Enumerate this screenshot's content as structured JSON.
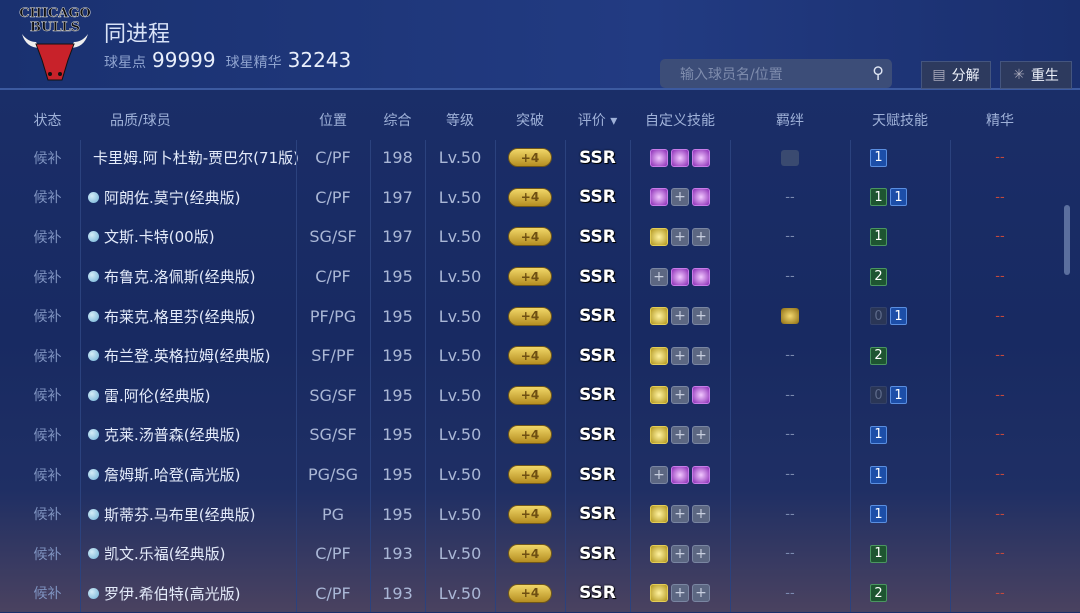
{
  "header": {
    "logo_text": "CHICAGO BULLS",
    "title": "同进程",
    "points_label": "球星点",
    "points": "99999",
    "essence_label": "球星精华",
    "essence": "32243",
    "search_placeholder": "输入球员名/位置",
    "decompose": "分解",
    "rebirth": "重生"
  },
  "columns": [
    "状态",
    "品质/球员",
    "位置",
    "综合",
    "等级",
    "突破",
    "评价 ▾",
    "自定义技能",
    "羁绊",
    "天赋技能",
    "精华"
  ],
  "colors": {
    "purple_skill": "#8a2bb5",
    "gold_skill": "#b0951c",
    "talent_blue": "#1c4ea8",
    "talent_green": "#1e5531",
    "essence_dash": "#c3493d"
  },
  "rows": [
    {
      "status": "候补",
      "name": "卡里姆.阿卜杜勒-贾巴尔(71版)",
      "pos": "C/PF",
      "ovr": "198",
      "lv": "Lv.50",
      "brk": "+4",
      "grade": "SSR",
      "skills": [
        "p",
        "p",
        "p"
      ],
      "bond": "icon-grey",
      "talents": [
        [
          "b",
          "1"
        ]
      ],
      "ess": "--"
    },
    {
      "status": "候补",
      "name": "阿朗佐.莫宁(经典版)",
      "pos": "C/PF",
      "ovr": "197",
      "lv": "Lv.50",
      "brk": "+4",
      "grade": "SSR",
      "skills": [
        "p",
        "e",
        "p"
      ],
      "bond": "--",
      "talents": [
        [
          "g",
          "1"
        ],
        [
          "b",
          "1"
        ]
      ],
      "ess": "--"
    },
    {
      "status": "候补",
      "name": "文斯.卡特(00版)",
      "pos": "SG/SF",
      "ovr": "197",
      "lv": "Lv.50",
      "brk": "+4",
      "grade": "SSR",
      "skills": [
        "y",
        "e",
        "e"
      ],
      "bond": "--",
      "talents": [
        [
          "g",
          "1"
        ]
      ],
      "ess": "--"
    },
    {
      "status": "候补",
      "name": "布鲁克.洛佩斯(经典版)",
      "pos": "C/PF",
      "ovr": "195",
      "lv": "Lv.50",
      "brk": "+4",
      "grade": "SSR",
      "skills": [
        "e",
        "p",
        "p"
      ],
      "bond": "--",
      "talents": [
        [
          "g",
          "2"
        ]
      ],
      "ess": "--"
    },
    {
      "status": "候补",
      "name": "布莱克.格里芬(经典版)",
      "pos": "PF/PG",
      "ovr": "195",
      "lv": "Lv.50",
      "brk": "+4",
      "grade": "SSR",
      "skills": [
        "y",
        "e",
        "e"
      ],
      "bond": "icon-gold",
      "talents": [
        [
          "z",
          "0"
        ],
        [
          "b",
          "1"
        ]
      ],
      "ess": "--"
    },
    {
      "status": "候补",
      "name": "布兰登.英格拉姆(经典版)",
      "pos": "SF/PF",
      "ovr": "195",
      "lv": "Lv.50",
      "brk": "+4",
      "grade": "SSR",
      "skills": [
        "y",
        "e",
        "e"
      ],
      "bond": "--",
      "talents": [
        [
          "g",
          "2"
        ]
      ],
      "ess": "--"
    },
    {
      "status": "候补",
      "name": "雷.阿伦(经典版)",
      "pos": "SG/SF",
      "ovr": "195",
      "lv": "Lv.50",
      "brk": "+4",
      "grade": "SSR",
      "skills": [
        "y",
        "e",
        "p"
      ],
      "bond": "--",
      "talents": [
        [
          "z",
          "0"
        ],
        [
          "b",
          "1"
        ]
      ],
      "ess": "--"
    },
    {
      "status": "候补",
      "name": "克莱.汤普森(经典版)",
      "pos": "SG/SF",
      "ovr": "195",
      "lv": "Lv.50",
      "brk": "+4",
      "grade": "SSR",
      "skills": [
        "y",
        "e",
        "e"
      ],
      "bond": "--",
      "talents": [
        [
          "b",
          "1"
        ]
      ],
      "ess": "--"
    },
    {
      "status": "候补",
      "name": "詹姆斯.哈登(高光版)",
      "pos": "PG/SG",
      "ovr": "195",
      "lv": "Lv.50",
      "brk": "+4",
      "grade": "SSR",
      "skills": [
        "e",
        "p",
        "p"
      ],
      "bond": "--",
      "talents": [
        [
          "b",
          "1"
        ]
      ],
      "ess": "--"
    },
    {
      "status": "候补",
      "name": "斯蒂芬.马布里(经典版)",
      "pos": "PG",
      "ovr": "195",
      "lv": "Lv.50",
      "brk": "+4",
      "grade": "SSR",
      "skills": [
        "y",
        "e",
        "e"
      ],
      "bond": "--",
      "talents": [
        [
          "b",
          "1"
        ]
      ],
      "ess": "--"
    },
    {
      "status": "候补",
      "name": "凯文.乐福(经典版)",
      "pos": "C/PF",
      "ovr": "193",
      "lv": "Lv.50",
      "brk": "+4",
      "grade": "SSR",
      "skills": [
        "y",
        "e",
        "e"
      ],
      "bond": "--",
      "talents": [
        [
          "g",
          "1"
        ]
      ],
      "ess": "--"
    },
    {
      "status": "候补",
      "name": "罗伊.希伯特(高光版)",
      "pos": "C/PF",
      "ovr": "193",
      "lv": "Lv.50",
      "brk": "+4",
      "grade": "SSR",
      "skills": [
        "y",
        "e",
        "e"
      ],
      "bond": "--",
      "talents": [
        [
          "g",
          "2"
        ]
      ],
      "ess": "--"
    }
  ]
}
